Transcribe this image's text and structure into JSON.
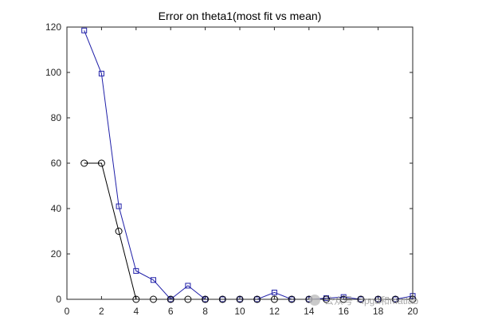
{
  "chart_data": {
    "type": "line",
    "title": "Error on theta1(most fit vs mean)",
    "xlabel": "",
    "ylabel": "",
    "xlim": [
      0,
      20
    ],
    "ylim": [
      0,
      120
    ],
    "xticks": [
      0,
      2,
      4,
      6,
      8,
      10,
      12,
      14,
      16,
      18,
      20
    ],
    "yticks": [
      0,
      20,
      40,
      60,
      80,
      100,
      120
    ],
    "grid": false,
    "legend": "none",
    "x": [
      1,
      2,
      3,
      4,
      5,
      6,
      7,
      8,
      9,
      10,
      11,
      12,
      13,
      14,
      15,
      16,
      17,
      18,
      19,
      20
    ],
    "series": [
      {
        "marker": "square",
        "color": "#1f1fa8",
        "values": [
          118.5,
          99.5,
          41,
          12.5,
          8.5,
          0,
          6,
          0,
          0,
          0,
          0,
          3,
          0,
          0,
          0.5,
          1,
          0,
          0,
          0,
          1.5
        ]
      },
      {
        "marker": "circle",
        "color": "#000000",
        "values": [
          60,
          60,
          30,
          0,
          0,
          0,
          0,
          0,
          0,
          0,
          0,
          0,
          0,
          0,
          0,
          0,
          0,
          0,
          0,
          0
        ]
      }
    ]
  },
  "watermark": {
    "text": "公众号 · fpga和matlab"
  }
}
